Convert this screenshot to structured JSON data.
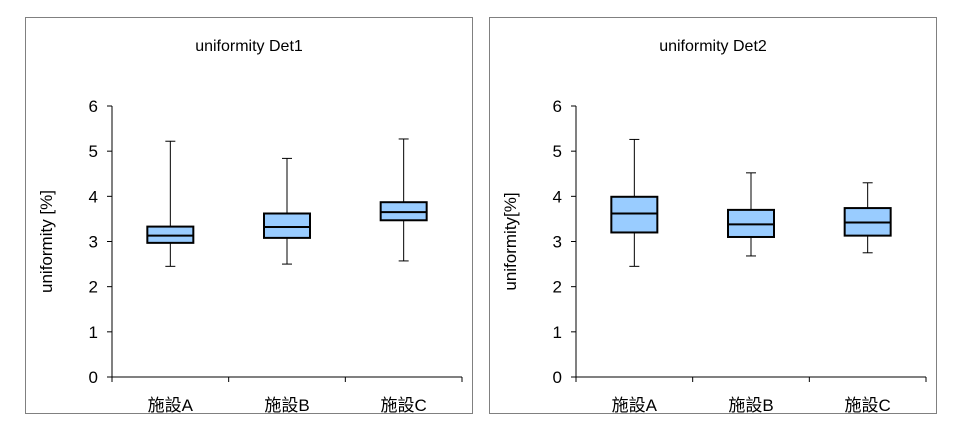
{
  "chart_data": [
    {
      "type": "boxplot",
      "title": "uniformity Det1",
      "ylabel": "uniformity [%]",
      "xlabel": "",
      "categories": [
        "施設A",
        "施設B",
        "施設C"
      ],
      "ylim": [
        0,
        6
      ],
      "yticks": [
        "0",
        "1",
        "2",
        "3",
        "4",
        "5",
        "6"
      ],
      "boxes": [
        {
          "category": "施設A",
          "min": 2.45,
          "q1": 2.97,
          "median": 3.13,
          "q3": 3.33,
          "max": 5.22
        },
        {
          "category": "施設B",
          "min": 2.5,
          "q1": 3.08,
          "median": 3.32,
          "q3": 3.62,
          "max": 4.84
        },
        {
          "category": "施設C",
          "min": 2.57,
          "q1": 3.47,
          "median": 3.65,
          "q3": 3.87,
          "max": 5.27
        }
      ],
      "box_color": "#99ccff"
    },
    {
      "type": "boxplot",
      "title": "uniformity Det2",
      "ylabel": "uniformity[%]",
      "xlabel": "",
      "categories": [
        "施設A",
        "施設B",
        "施設C"
      ],
      "ylim": [
        0,
        6
      ],
      "yticks": [
        "0",
        "1",
        "2",
        "3",
        "4",
        "5",
        "6"
      ],
      "boxes": [
        {
          "category": "施設A",
          "min": 2.45,
          "q1": 3.2,
          "median": 3.62,
          "q3": 3.99,
          "max": 5.26
        },
        {
          "category": "施設B",
          "min": 2.68,
          "q1": 3.1,
          "median": 3.38,
          "q3": 3.7,
          "max": 4.52
        },
        {
          "category": "施設C",
          "min": 2.75,
          "q1": 3.13,
          "median": 3.42,
          "q3": 3.74,
          "max": 4.3
        }
      ],
      "box_color": "#99ccff"
    }
  ]
}
